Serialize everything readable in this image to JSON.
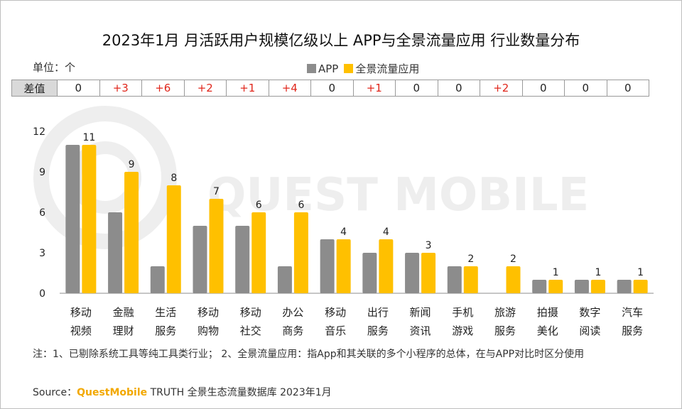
{
  "title": "2023年1月 月活跃用户规模亿级以上 APP与全景流量应用 行业数量分布",
  "unit_label": "单位：个",
  "legend": {
    "app_label": "APP",
    "panorama_label": "全景流量应用"
  },
  "diff_row": {
    "header": "差值",
    "values": [
      "0",
      "+3",
      "+6",
      "+2",
      "+1",
      "+4",
      "0",
      "+1",
      "0",
      "0",
      "+2",
      "0",
      "0",
      "0"
    ]
  },
  "colors": {
    "app": "#8c8c8c",
    "panorama": "#ffc000",
    "positive_diff": "#e0261b",
    "watermark": "#eeeeee"
  },
  "watermark": "QUEST MOBILE",
  "chart_data": {
    "type": "bar",
    "categories": [
      [
        "移动",
        "视频"
      ],
      [
        "金融",
        "理财"
      ],
      [
        "生活",
        "服务"
      ],
      [
        "移动",
        "购物"
      ],
      [
        "移动",
        "社交"
      ],
      [
        "办公",
        "商务"
      ],
      [
        "移动",
        "音乐"
      ],
      [
        "出行",
        "服务"
      ],
      [
        "新闻",
        "资讯"
      ],
      [
        "手机",
        "游戏"
      ],
      [
        "旅游",
        "服务"
      ],
      [
        "拍摄",
        "美化"
      ],
      [
        "数字",
        "阅读"
      ],
      [
        "汽车",
        "服务"
      ]
    ],
    "series": [
      {
        "name": "APP",
        "values": [
          11,
          6,
          2,
          5,
          5,
          2,
          4,
          3,
          3,
          2,
          0,
          1,
          1,
          1
        ]
      },
      {
        "name": "全景流量应用",
        "values": [
          11,
          9,
          8,
          7,
          6,
          6,
          4,
          4,
          3,
          2,
          2,
          1,
          1,
          1
        ]
      }
    ],
    "data_labels_series": "全景流量应用",
    "y_ticks": [
      "0",
      "3",
      "6",
      "9",
      "12"
    ],
    "ylim": [
      0,
      12
    ],
    "xlabel": "",
    "ylabel": ""
  },
  "note": "注：1、已剔除系统工具等纯工具类行业；  2、全景流量应用：指App和其关联的多个小程序的总体，在与APP对比时区分使用",
  "source": {
    "prefix": "Source：",
    "brand": "QuestMobile",
    "suffix": " TRUTH 全景生态流量数据库 2023年1月"
  }
}
